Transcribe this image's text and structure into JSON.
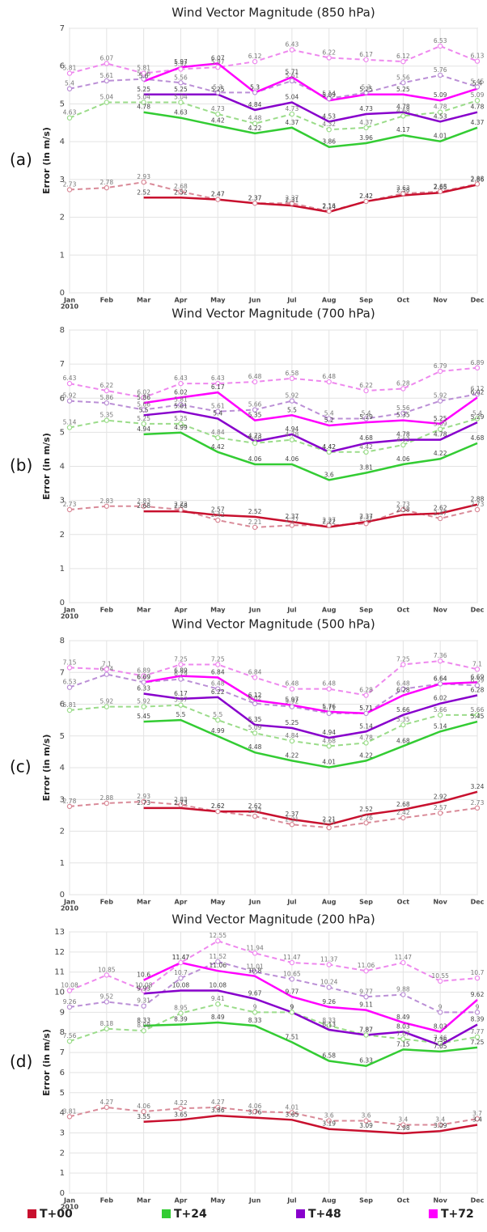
{
  "chart_data": [
    {
      "type": "line",
      "title": "Wind Vector Magnitude (850 hPa)",
      "panel_label": "(a)",
      "y_label": "Error (in m/s)",
      "categories": [
        "Jan",
        "Feb",
        "Mar",
        "Apr",
        "May",
        "Jun",
        "Jul",
        "Aug",
        "Sep",
        "Oct",
        "Nov",
        "Dec"
      ],
      "x_sublabel": "2010",
      "ylim": [
        0,
        7
      ],
      "yticks": [
        0,
        1,
        2,
        3,
        4,
        5,
        6,
        7
      ],
      "grid": true,
      "series": [
        {
          "legend": 0,
          "dashed": true,
          "color": "#d98a98",
          "values": [
            2.73,
            2.78,
            2.93,
            2.68,
            2.47,
            2.37,
            2.37,
            2.16,
            2.42,
            2.63,
            2.68,
            2.88
          ]
        },
        {
          "legend": 1,
          "dashed": true,
          "color": "#9bdc8a",
          "values": [
            4.63,
            5.04,
            5.04,
            5.04,
            4.73,
            4.48,
            4.73,
            4.32,
            4.37,
            4.68,
            4.78,
            5.09
          ]
        },
        {
          "legend": 2,
          "dashed": true,
          "color": "#bb8fd6",
          "values": [
            5.4,
            5.61,
            5.66,
            5.56,
            5.3,
            5.3,
            5.61,
            5.14,
            5.3,
            5.56,
            5.76,
            5.45
          ]
        },
        {
          "legend": 3,
          "dashed": true,
          "color": "#ee88ee",
          "values": [
            5.81,
            6.07,
            5.81,
            5.92,
            5.97,
            6.12,
            6.43,
            6.22,
            6.17,
            6.12,
            6.53,
            6.13
          ]
        },
        {
          "legend": 0,
          "dashed": false,
          "color": "#c8102e",
          "values": [
            null,
            null,
            2.52,
            2.52,
            2.47,
            2.37,
            2.31,
            2.14,
            2.42,
            2.58,
            2.65,
            2.86
          ]
        },
        {
          "legend": 1,
          "dashed": false,
          "color": "#33cc33",
          "values": [
            null,
            null,
            4.78,
            4.63,
            4.42,
            4.22,
            4.37,
            3.86,
            3.96,
            4.17,
            4.01,
            4.37
          ]
        },
        {
          "legend": 2,
          "dashed": false,
          "color": "#8800cc",
          "values": [
            null,
            null,
            5.25,
            5.25,
            5.25,
            4.84,
            5.04,
            4.53,
            4.73,
            4.78,
            4.53,
            4.78
          ]
        },
        {
          "legend": 3,
          "dashed": false,
          "color": "#ff00ff",
          "values": [
            null,
            null,
            5.6,
            5.97,
            6.07,
            5.3,
            5.71,
            5.09,
            5.25,
            5.25,
            5.09,
            5.4
          ]
        }
      ]
    },
    {
      "type": "line",
      "title": "Wind Vector Magnitude (700 hPa)",
      "panel_label": "(b)",
      "y_label": "Error (in m/s)",
      "categories": [
        "Jan",
        "Feb",
        "Mar",
        "Apr",
        "May",
        "Jun",
        "Jul",
        "Aug",
        "Sep",
        "Oct",
        "Nov",
        "Dec"
      ],
      "x_sublabel": "2010",
      "ylim": [
        0,
        8
      ],
      "yticks": [
        0,
        1,
        2,
        3,
        4,
        5,
        6,
        7,
        8
      ],
      "grid": true,
      "series": [
        {
          "legend": 0,
          "dashed": true,
          "color": "#d98a98",
          "values": [
            2.73,
            2.83,
            2.83,
            2.73,
            2.42,
            2.21,
            2.27,
            2.27,
            2.32,
            2.73,
            2.47,
            2.73
          ]
        },
        {
          "legend": 1,
          "dashed": true,
          "color": "#9bdc8a",
          "values": [
            5.14,
            5.35,
            5.25,
            5.25,
            4.84,
            4.68,
            4.78,
            4.42,
            4.42,
            4.63,
            5.09,
            5.4
          ]
        },
        {
          "legend": 2,
          "dashed": true,
          "color": "#bb8fd6",
          "values": [
            5.92,
            5.86,
            5.66,
            5.81,
            5.61,
            5.66,
            5.92,
            5.4,
            5.4,
            5.56,
            5.92,
            6.12
          ]
        },
        {
          "legend": 3,
          "dashed": true,
          "color": "#ee88ee",
          "values": [
            6.43,
            6.22,
            6.02,
            6.43,
            6.43,
            6.48,
            6.58,
            6.48,
            6.22,
            6.28,
            6.79,
            6.89
          ]
        },
        {
          "legend": 0,
          "dashed": false,
          "color": "#c8102e",
          "values": [
            null,
            null,
            2.68,
            2.68,
            2.57,
            2.52,
            2.37,
            2.22,
            2.37,
            2.58,
            2.62,
            2.88
          ]
        },
        {
          "legend": 1,
          "dashed": false,
          "color": "#33cc33",
          "values": [
            null,
            null,
            4.94,
            4.99,
            4.42,
            4.06,
            4.06,
            3.6,
            3.81,
            4.06,
            4.22,
            4.68
          ]
        },
        {
          "legend": 2,
          "dashed": false,
          "color": "#8800cc",
          "values": [
            null,
            null,
            5.5,
            5.61,
            5.4,
            4.73,
            4.94,
            4.42,
            4.68,
            4.78,
            4.78,
            5.29
          ]
        },
        {
          "legend": 3,
          "dashed": false,
          "color": "#ff00ff",
          "values": [
            null,
            null,
            5.86,
            6.02,
            6.17,
            5.35,
            5.5,
            5.2,
            5.29,
            5.35,
            5.25,
            6.02
          ]
        }
      ]
    },
    {
      "type": "line",
      "title": "Wind Vector Magnitude (500 hPa)",
      "panel_label": "(c)",
      "y_label": "Error (in m/s)",
      "categories": [
        "Jan",
        "Feb",
        "Mar",
        "Apr",
        "May",
        "Jun",
        "Jul",
        "Aug",
        "Sep",
        "Oct",
        "Nov",
        "Dec"
      ],
      "x_sublabel": "2010",
      "ylim": [
        0,
        8
      ],
      "yticks": [
        0,
        1,
        2,
        3,
        4,
        5,
        6,
        7,
        8
      ],
      "grid": true,
      "series": [
        {
          "legend": 0,
          "dashed": true,
          "color": "#d98a98",
          "values": [
            2.78,
            2.88,
            2.93,
            2.83,
            2.62,
            2.47,
            2.21,
            2.11,
            2.26,
            2.42,
            2.57,
            2.73
          ]
        },
        {
          "legend": 1,
          "dashed": true,
          "color": "#9bdc8a",
          "values": [
            5.81,
            5.92,
            5.92,
            5.97,
            5.5,
            5.09,
            4.84,
            4.68,
            4.78,
            5.35,
            5.66,
            5.66
          ]
        },
        {
          "legend": 2,
          "dashed": true,
          "color": "#bb8fd6",
          "values": [
            6.53,
            6.94,
            6.69,
            6.79,
            6.48,
            6.02,
            5.92,
            5.71,
            5.71,
            6.48,
            6.64,
            6.59
          ]
        },
        {
          "legend": 3,
          "dashed": true,
          "color": "#ee88ee",
          "values": [
            7.15,
            7.1,
            6.89,
            7.25,
            7.25,
            6.84,
            6.48,
            6.48,
            6.28,
            7.25,
            7.36,
            7.1
          ]
        },
        {
          "legend": 0,
          "dashed": false,
          "color": "#c8102e",
          "values": [
            null,
            null,
            2.73,
            2.73,
            2.62,
            2.62,
            2.37,
            2.21,
            2.52,
            2.68,
            2.92,
            3.24
          ]
        },
        {
          "legend": 1,
          "dashed": false,
          "color": "#33cc33",
          "values": [
            null,
            null,
            5.45,
            5.5,
            4.99,
            4.48,
            4.22,
            4.01,
            4.22,
            4.68,
            5.14,
            5.45
          ]
        },
        {
          "legend": 2,
          "dashed": false,
          "color": "#8800cc",
          "values": [
            null,
            null,
            6.33,
            6.17,
            6.22,
            5.35,
            5.25,
            4.94,
            5.14,
            5.66,
            6.02,
            6.28
          ]
        },
        {
          "legend": 3,
          "dashed": false,
          "color": "#ff00ff",
          "values": [
            null,
            null,
            6.69,
            6.89,
            6.84,
            6.12,
            5.97,
            5.76,
            5.71,
            6.28,
            6.64,
            6.69
          ]
        }
      ]
    },
    {
      "type": "line",
      "title": "Wind Vector Magnitude (200 hPa)",
      "panel_label": "(d)",
      "y_label": "Error (in m/s)",
      "categories": [
        "Jan",
        "Feb",
        "Mar",
        "Apr",
        "May",
        "Jun",
        "Jul",
        "Aug",
        "Sep",
        "Oct",
        "Nov",
        "Dec"
      ],
      "x_sublabel": "2010",
      "ylim": [
        0,
        13
      ],
      "yticks": [
        0,
        1,
        2,
        3,
        4,
        5,
        6,
        7,
        8,
        9,
        10,
        11,
        12,
        13
      ],
      "grid": true,
      "series": [
        {
          "legend": 0,
          "dashed": true,
          "color": "#d98a98",
          "values": [
            3.81,
            4.27,
            4.06,
            4.22,
            4.27,
            4.06,
            4.01,
            3.6,
            3.6,
            3.4,
            3.4,
            3.7
          ]
        },
        {
          "legend": 1,
          "dashed": true,
          "color": "#9bdc8a",
          "values": [
            7.56,
            8.18,
            8.08,
            8.95,
            9.41,
            9,
            9,
            8.33,
            7.87,
            7.67,
            7.46,
            7.77
          ]
        },
        {
          "legend": 2,
          "dashed": true,
          "color": "#bb8fd6",
          "values": [
            9.26,
            9.52,
            9.31,
            10.7,
            11.52,
            11.01,
            10.65,
            10.24,
            9.77,
            9.88,
            9,
            9
          ]
        },
        {
          "legend": 3,
          "dashed": true,
          "color": "#ee88ee",
          "values": [
            10.08,
            10.85,
            10.08,
            11.47,
            12.55,
            11.94,
            11.47,
            11.37,
            11.06,
            11.47,
            10.55,
            10.7
          ]
        },
        {
          "legend": 0,
          "dashed": false,
          "color": "#c8102e",
          "values": [
            null,
            null,
            3.55,
            3.65,
            3.86,
            3.76,
            3.65,
            3.19,
            3.09,
            2.98,
            3.09,
            3.4
          ]
        },
        {
          "legend": 1,
          "dashed": false,
          "color": "#33cc33",
          "values": [
            null,
            null,
            8.33,
            8.39,
            8.49,
            8.33,
            7.51,
            6.58,
            6.33,
            7.15,
            7.05,
            7.25
          ]
        },
        {
          "legend": 2,
          "dashed": false,
          "color": "#8800cc",
          "values": [
            null,
            null,
            9.93,
            10.08,
            10.08,
            9.67,
            9,
            8.13,
            7.87,
            8.03,
            7.36,
            8.39
          ]
        },
        {
          "legend": 3,
          "dashed": false,
          "color": "#ff00ff",
          "values": [
            null,
            null,
            10.6,
            11.47,
            11.06,
            10.8,
            9.77,
            9.26,
            9.11,
            8.49,
            8.03,
            9.62
          ]
        }
      ]
    }
  ],
  "legend": [
    {
      "name": "T+00",
      "color": "#c8102e"
    },
    {
      "name": "T+24",
      "color": "#33cc33"
    },
    {
      "name": "T+48",
      "color": "#8800cc"
    },
    {
      "name": "T+72",
      "color": "#ff00ff"
    }
  ]
}
